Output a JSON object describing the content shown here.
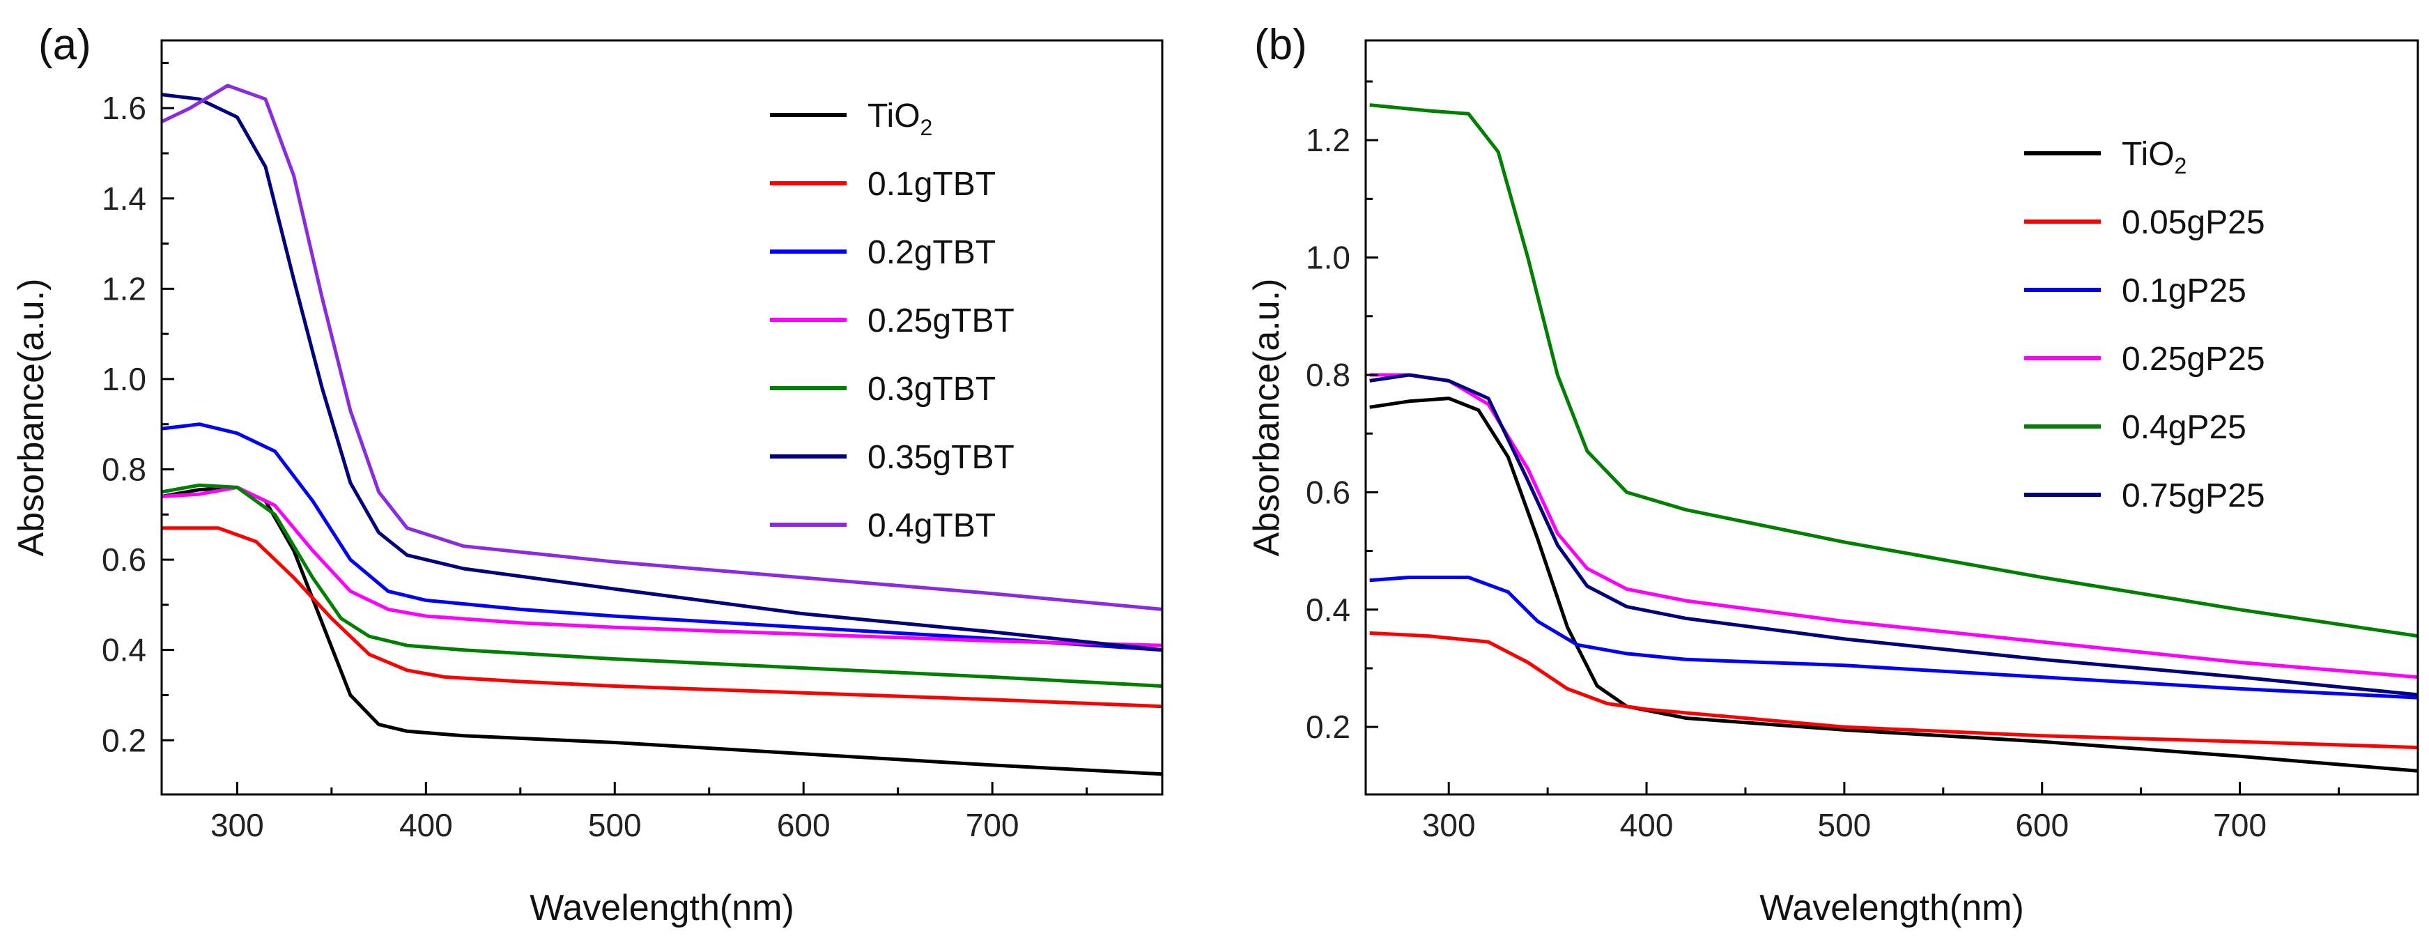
{
  "chart_data": [
    {
      "type": "line",
      "panel_label": "(a)",
      "xlabel": "Wavelength(nm)",
      "ylabel": "Absorbance(a.u.)",
      "xlim": [
        260,
        790
      ],
      "ylim": [
        0.08,
        1.75
      ],
      "xticks": [
        300,
        400,
        500,
        600,
        700
      ],
      "yticks": [
        0.2,
        0.4,
        0.6,
        0.8,
        1.0,
        1.2,
        1.4,
        1.6
      ],
      "ytick_labels": [
        "0.2",
        "0.4",
        "0.6",
        "0.8",
        "1.0",
        "1.2",
        "1.4",
        "1.6"
      ],
      "legend_position": "top-right",
      "series": [
        {
          "name": "TiO",
          "subscript": "2",
          "color": "#000000",
          "points": [
            [
              260,
              0.74
            ],
            [
              280,
              0.755
            ],
            [
              300,
              0.76
            ],
            [
              315,
              0.73
            ],
            [
              330,
              0.62
            ],
            [
              345,
              0.46
            ],
            [
              360,
              0.3
            ],
            [
              375,
              0.235
            ],
            [
              390,
              0.22
            ],
            [
              420,
              0.21
            ],
            [
              500,
              0.195
            ],
            [
              600,
              0.17
            ],
            [
              700,
              0.145
            ],
            [
              790,
              0.125
            ]
          ]
        },
        {
          "name": "0.1gTBT",
          "color": "#ff0000",
          "points": [
            [
              260,
              0.67
            ],
            [
              290,
              0.67
            ],
            [
              310,
              0.64
            ],
            [
              330,
              0.56
            ],
            [
              350,
              0.47
            ],
            [
              370,
              0.39
            ],
            [
              390,
              0.355
            ],
            [
              410,
              0.34
            ],
            [
              450,
              0.33
            ],
            [
              500,
              0.32
            ],
            [
              600,
              0.305
            ],
            [
              700,
              0.29
            ],
            [
              790,
              0.275
            ]
          ]
        },
        {
          "name": "0.2gTBT",
          "color": "#0000ff",
          "points": [
            [
              260,
              0.89
            ],
            [
              280,
              0.9
            ],
            [
              300,
              0.88
            ],
            [
              320,
              0.84
            ],
            [
              340,
              0.73
            ],
            [
              360,
              0.6
            ],
            [
              380,
              0.53
            ],
            [
              400,
              0.51
            ],
            [
              450,
              0.49
            ],
            [
              500,
              0.475
            ],
            [
              600,
              0.45
            ],
            [
              700,
              0.425
            ],
            [
              790,
              0.4
            ]
          ]
        },
        {
          "name": "0.25gTBT",
          "color": "#ff00ff",
          "points": [
            [
              260,
              0.74
            ],
            [
              280,
              0.745
            ],
            [
              300,
              0.76
            ],
            [
              320,
              0.72
            ],
            [
              340,
              0.62
            ],
            [
              360,
              0.53
            ],
            [
              380,
              0.49
            ],
            [
              400,
              0.475
            ],
            [
              450,
              0.46
            ],
            [
              500,
              0.45
            ],
            [
              600,
              0.435
            ],
            [
              700,
              0.42
            ],
            [
              790,
              0.41
            ]
          ]
        },
        {
          "name": "0.3gTBT",
          "color": "#008000",
          "points": [
            [
              260,
              0.75
            ],
            [
              280,
              0.765
            ],
            [
              300,
              0.76
            ],
            [
              320,
              0.7
            ],
            [
              340,
              0.56
            ],
            [
              355,
              0.47
            ],
            [
              370,
              0.43
            ],
            [
              390,
              0.41
            ],
            [
              420,
              0.4
            ],
            [
              500,
              0.38
            ],
            [
              600,
              0.36
            ],
            [
              700,
              0.34
            ],
            [
              790,
              0.32
            ]
          ]
        },
        {
          "name": "0.35gTBT",
          "color": "#000080",
          "points": [
            [
              260,
              1.63
            ],
            [
              280,
              1.62
            ],
            [
              300,
              1.58
            ],
            [
              315,
              1.47
            ],
            [
              330,
              1.22
            ],
            [
              345,
              0.98
            ],
            [
              360,
              0.77
            ],
            [
              375,
              0.66
            ],
            [
              390,
              0.61
            ],
            [
              420,
              0.58
            ],
            [
              500,
              0.535
            ],
            [
              600,
              0.48
            ],
            [
              700,
              0.44
            ],
            [
              790,
              0.4
            ]
          ]
        },
        {
          "name": "0.4gTBT",
          "color": "#8a2be2",
          "points": [
            [
              260,
              1.57
            ],
            [
              275,
              1.6
            ],
            [
              295,
              1.65
            ],
            [
              315,
              1.62
            ],
            [
              330,
              1.45
            ],
            [
              345,
              1.18
            ],
            [
              360,
              0.93
            ],
            [
              375,
              0.75
            ],
            [
              390,
              0.67
            ],
            [
              420,
              0.63
            ],
            [
              500,
              0.595
            ],
            [
              600,
              0.56
            ],
            [
              700,
              0.525
            ],
            [
              790,
              0.49
            ]
          ]
        }
      ]
    },
    {
      "type": "line",
      "panel_label": "(b)",
      "xlabel": "Wavelength(nm)",
      "ylabel": "Absorbance(a.u.)",
      "xlim": [
        258,
        790
      ],
      "ylim": [
        0.085,
        1.37
      ],
      "xticks": [
        300,
        400,
        500,
        600,
        700
      ],
      "yticks": [
        0.2,
        0.4,
        0.6,
        0.8,
        1.0,
        1.2
      ],
      "ytick_labels": [
        "0.2",
        "0.4",
        "0.6",
        "0.8",
        "1.0",
        "1.2"
      ],
      "legend_position": "top-right",
      "series": [
        {
          "name": "TiO",
          "subscript": "2",
          "color": "#000000",
          "points": [
            [
              260,
              0.745
            ],
            [
              280,
              0.755
            ],
            [
              300,
              0.76
            ],
            [
              315,
              0.74
            ],
            [
              330,
              0.66
            ],
            [
              345,
              0.52
            ],
            [
              360,
              0.37
            ],
            [
              375,
              0.27
            ],
            [
              390,
              0.235
            ],
            [
              420,
              0.215
            ],
            [
              500,
              0.195
            ],
            [
              600,
              0.175
            ],
            [
              700,
              0.15
            ],
            [
              790,
              0.125
            ]
          ]
        },
        {
          "name": "0.05gP25",
          "color": "#ff0000",
          "points": [
            [
              260,
              0.36
            ],
            [
              290,
              0.355
            ],
            [
              320,
              0.345
            ],
            [
              340,
              0.31
            ],
            [
              360,
              0.265
            ],
            [
              380,
              0.24
            ],
            [
              400,
              0.23
            ],
            [
              450,
              0.215
            ],
            [
              500,
              0.2
            ],
            [
              600,
              0.185
            ],
            [
              700,
              0.175
            ],
            [
              790,
              0.165
            ]
          ]
        },
        {
          "name": "0.1gP25",
          "color": "#0000ff",
          "points": [
            [
              260,
              0.45
            ],
            [
              280,
              0.455
            ],
            [
              310,
              0.455
            ],
            [
              330,
              0.43
            ],
            [
              345,
              0.38
            ],
            [
              365,
              0.34
            ],
            [
              390,
              0.325
            ],
            [
              420,
              0.315
            ],
            [
              500,
              0.305
            ],
            [
              600,
              0.285
            ],
            [
              700,
              0.265
            ],
            [
              790,
              0.25
            ]
          ]
        },
        {
          "name": "0.25gP25",
          "color": "#ff00ff",
          "points": [
            [
              260,
              0.8
            ],
            [
              280,
              0.8
            ],
            [
              300,
              0.79
            ],
            [
              320,
              0.75
            ],
            [
              340,
              0.64
            ],
            [
              355,
              0.53
            ],
            [
              370,
              0.47
            ],
            [
              390,
              0.435
            ],
            [
              420,
              0.415
            ],
            [
              500,
              0.38
            ],
            [
              600,
              0.345
            ],
            [
              700,
              0.31
            ],
            [
              790,
              0.285
            ]
          ]
        },
        {
          "name": "0.4gP25",
          "color": "#008000",
          "points": [
            [
              260,
              1.26
            ],
            [
              290,
              1.25
            ],
            [
              310,
              1.245
            ],
            [
              325,
              1.18
            ],
            [
              340,
              1.0
            ],
            [
              355,
              0.8
            ],
            [
              370,
              0.67
            ],
            [
              390,
              0.6
            ],
            [
              420,
              0.57
            ],
            [
              500,
              0.515
            ],
            [
              600,
              0.455
            ],
            [
              700,
              0.4
            ],
            [
              790,
              0.355
            ]
          ]
        },
        {
          "name": "0.75gP25",
          "color": "#000080",
          "points": [
            [
              260,
              0.79
            ],
            [
              280,
              0.8
            ],
            [
              300,
              0.79
            ],
            [
              320,
              0.76
            ],
            [
              340,
              0.62
            ],
            [
              355,
              0.51
            ],
            [
              370,
              0.44
            ],
            [
              390,
              0.405
            ],
            [
              420,
              0.385
            ],
            [
              500,
              0.35
            ],
            [
              600,
              0.315
            ],
            [
              700,
              0.285
            ],
            [
              790,
              0.255
            ]
          ]
        }
      ]
    }
  ]
}
